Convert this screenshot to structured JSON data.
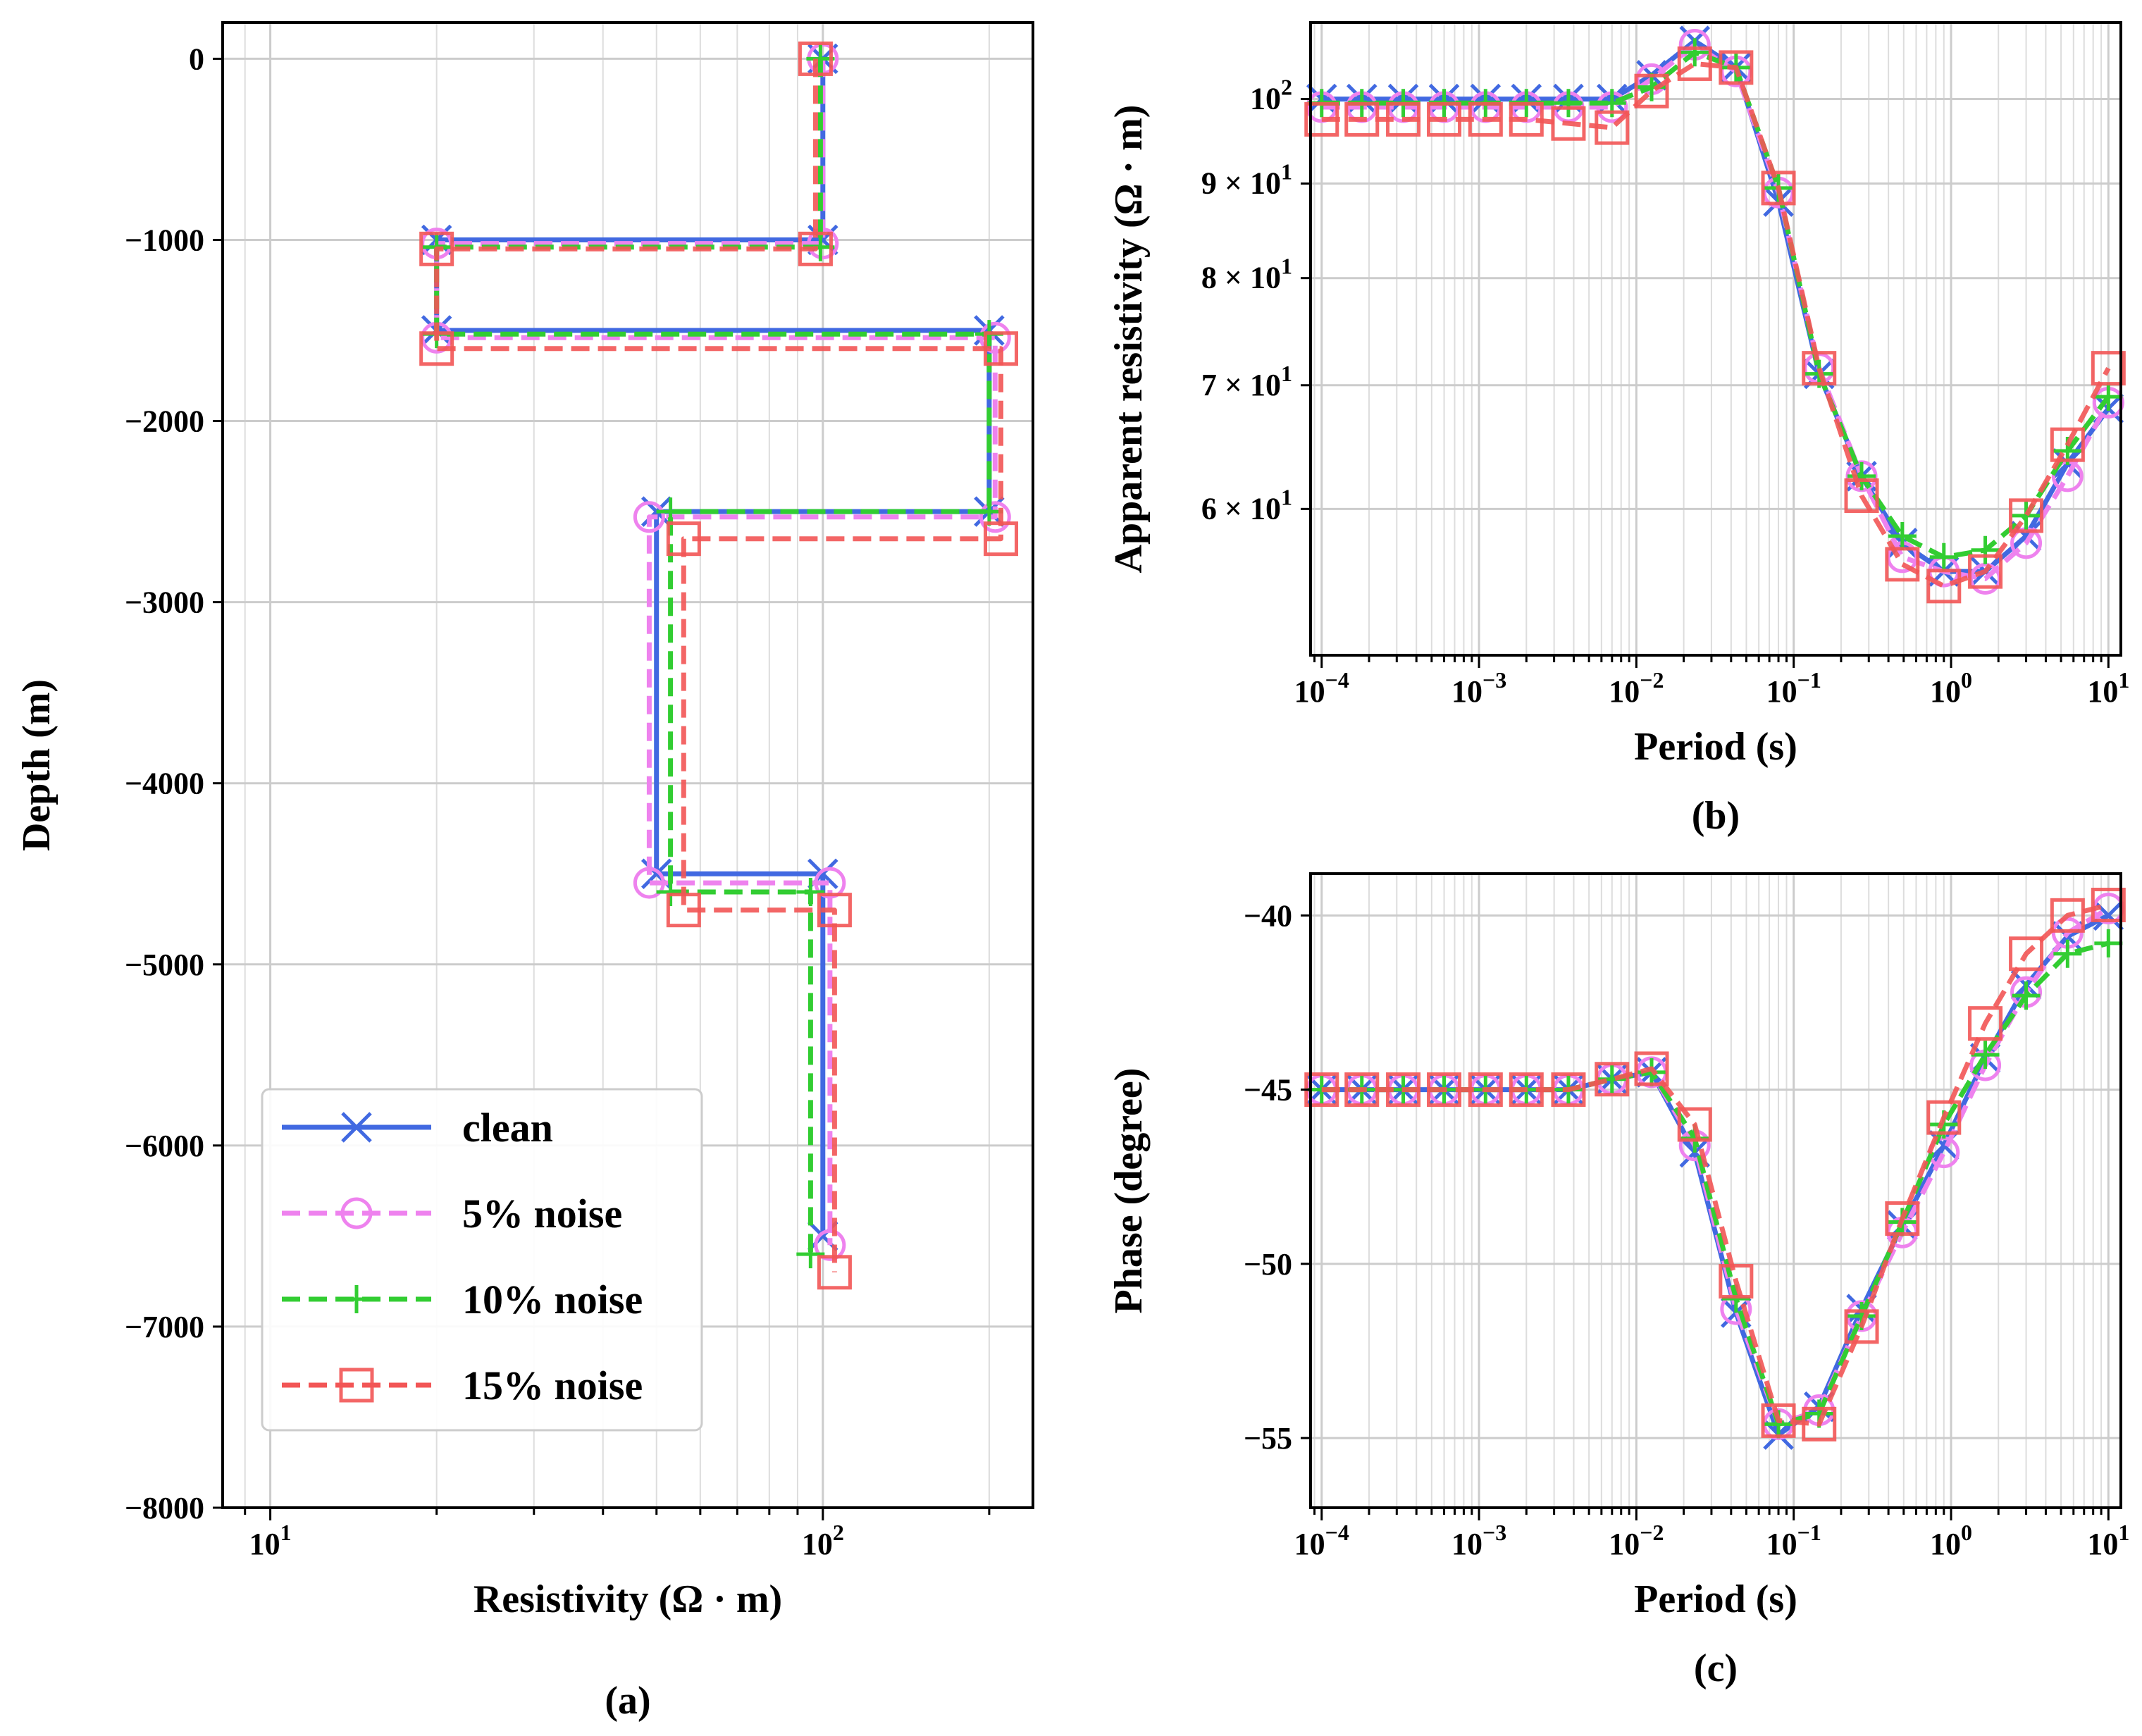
{
  "colors": {
    "clean": "#4169e1",
    "n5": "#ee82ee",
    "n10": "#32cd32",
    "n15": "#f25555"
  },
  "legend": {
    "items": [
      "clean",
      "5% noise",
      "10% noise",
      "15% noise"
    ]
  },
  "chart_data": [
    {
      "panel": "a",
      "type": "line",
      "caption": "(a)",
      "xlabel": "Resistivity (Ω · m)",
      "ylabel": "Depth (m)",
      "xscale": "log",
      "xlim": [
        8.2,
        240
      ],
      "ylim": [
        -8000,
        200
      ],
      "xticks": [
        {
          "v": 10,
          "base": "10",
          "exp": "1"
        },
        {
          "v": 100,
          "base": "10",
          "exp": "2"
        }
      ],
      "yticks": [
        0,
        -1000,
        -2000,
        -3000,
        -4000,
        -5000,
        -6000,
        -7000,
        -8000
      ],
      "yticklabels": [
        "0",
        "−1000",
        "−2000",
        "−3000",
        "−4000",
        "−5000",
        "−6000",
        "−7000",
        "−8000"
      ],
      "series": [
        {
          "name": "clean",
          "key": "clean",
          "marker": "x",
          "dash": false,
          "points": [
            [
              100,
              0
            ],
            [
              100,
              -1000
            ],
            [
              20,
              -1000
            ],
            [
              20,
              -1500
            ],
            [
              200,
              -1500
            ],
            [
              200,
              -2500
            ],
            [
              50,
              -2500
            ],
            [
              50,
              -4500
            ],
            [
              100,
              -4500
            ],
            [
              100,
              -6500
            ]
          ]
        },
        {
          "name": "5% noise",
          "key": "n5",
          "marker": "o",
          "dash": true,
          "points": [
            [
              100,
              0
            ],
            [
              100,
              -1020
            ],
            [
              20,
              -1020
            ],
            [
              20,
              -1540
            ],
            [
              205,
              -1540
            ],
            [
              205,
              -2530
            ],
            [
              48.5,
              -2530
            ],
            [
              48.5,
              -4550
            ],
            [
              103,
              -4550
            ],
            [
              103,
              -6550
            ]
          ]
        },
        {
          "name": "10% noise",
          "key": "n10",
          "marker": "+",
          "dash": true,
          "points": [
            [
              99,
              0
            ],
            [
              99,
              -1040
            ],
            [
              20,
              -1040
            ],
            [
              20,
              -1520
            ],
            [
              200,
              -1520
            ],
            [
              200,
              -2500
            ],
            [
              53,
              -2500
            ],
            [
              53,
              -4600
            ],
            [
              95,
              -4600
            ],
            [
              95,
              -6600
            ]
          ]
        },
        {
          "name": "15% noise",
          "key": "n15",
          "marker": "s",
          "dash": true,
          "points": [
            [
              97,
              0
            ],
            [
              97,
              -1050
            ],
            [
              20,
              -1050
            ],
            [
              20,
              -1600
            ],
            [
              210,
              -1600
            ],
            [
              210,
              -2650
            ],
            [
              56,
              -2650
            ],
            [
              56,
              -4700
            ],
            [
              105,
              -4700
            ],
            [
              105,
              -6700
            ]
          ]
        }
      ]
    },
    {
      "panel": "b",
      "type": "line",
      "caption": "(b)",
      "xlabel": "Period (s)",
      "ylabel": "Apparent resistivity (Ω · m)",
      "xscale": "log",
      "yscale": "log",
      "xlim": [
        8.5e-05,
        12
      ],
      "ylim": [
        50,
        110
      ],
      "xticks": [
        {
          "v": 0.0001,
          "base": "10",
          "exp": "−4"
        },
        {
          "v": 0.001,
          "base": "10",
          "exp": "−3"
        },
        {
          "v": 0.01,
          "base": "10",
          "exp": "−2"
        },
        {
          "v": 0.1,
          "base": "10",
          "exp": "−1"
        },
        {
          "v": 1,
          "base": "10",
          "exp": "0"
        },
        {
          "v": 10,
          "base": "10",
          "exp": "1"
        }
      ],
      "yticks": [
        {
          "v": 100,
          "text": "10",
          "exp": "2"
        },
        {
          "v": 90,
          "text": "9 × 10",
          "exp": "1"
        },
        {
          "v": 80,
          "text": "8 × 10",
          "exp": "1"
        },
        {
          "v": 70,
          "text": "7 × 10",
          "exp": "1"
        },
        {
          "v": 60,
          "text": "6 × 10",
          "exp": "1"
        }
      ],
      "x": [
        0.0001,
        0.00018,
        0.00033,
        0.0006,
        0.0011,
        0.002,
        0.0037,
        0.007,
        0.0125,
        0.0235,
        0.043,
        0.08,
        0.145,
        0.27,
        0.49,
        0.9,
        1.65,
        3.0,
        5.5,
        10
      ],
      "series": [
        {
          "name": "clean",
          "key": "clean",
          "marker": "x",
          "dash": false,
          "values": [
            100,
            100,
            100,
            100,
            100,
            100,
            100,
            100,
            103,
            107.5,
            104,
            88,
            71,
            62.5,
            57.5,
            55.5,
            55.5,
            58,
            63.5,
            68
          ]
        },
        {
          "name": "5% noise",
          "key": "n5",
          "marker": "o",
          "dash": true,
          "values": [
            99,
            99,
            99,
            99,
            99,
            99,
            99,
            99,
            102.5,
            107,
            103.5,
            89,
            71.5,
            62.5,
            56.5,
            55.5,
            55,
            57.5,
            62.5,
            68.5
          ]
        },
        {
          "name": "10% noise",
          "key": "n10",
          "marker": "+",
          "dash": true,
          "values": [
            99.5,
            99.5,
            99.5,
            99.5,
            99.5,
            99.5,
            99.5,
            99.5,
            101.5,
            106,
            104,
            89.5,
            71,
            62.5,
            58,
            56.5,
            57,
            59.5,
            64.5,
            69
          ]
        },
        {
          "name": "15% noise",
          "key": "n15",
          "marker": "s",
          "dash": true,
          "values": [
            97.5,
            97.5,
            97.5,
            97.5,
            97.5,
            97.5,
            97,
            96.5,
            101,
            104.5,
            104,
            89.5,
            71.5,
            61,
            56,
            54.5,
            55.5,
            59.5,
            65,
            71.5
          ]
        }
      ]
    },
    {
      "panel": "c",
      "type": "line",
      "caption": "(c)",
      "xlabel": "Period (s)",
      "ylabel": "Phase (degree)",
      "xscale": "log",
      "xlim": [
        8.5e-05,
        12
      ],
      "ylim": [
        -57,
        -38.8
      ],
      "xticks": [
        {
          "v": 0.0001,
          "base": "10",
          "exp": "−4"
        },
        {
          "v": 0.001,
          "base": "10",
          "exp": "−3"
        },
        {
          "v": 0.01,
          "base": "10",
          "exp": "−2"
        },
        {
          "v": 0.1,
          "base": "10",
          "exp": "−1"
        },
        {
          "v": 1,
          "base": "10",
          "exp": "0"
        },
        {
          "v": 10,
          "base": "10",
          "exp": "1"
        }
      ],
      "yticks": [
        -40,
        -45,
        -50,
        -55
      ],
      "yticklabels": [
        "−40",
        "−45",
        "−50",
        "−55"
      ],
      "x": [
        0.0001,
        0.00018,
        0.00033,
        0.0006,
        0.0011,
        0.002,
        0.0037,
        0.007,
        0.0125,
        0.0235,
        0.043,
        0.08,
        0.145,
        0.27,
        0.49,
        0.9,
        1.65,
        3.0,
        5.5,
        10
      ],
      "series": [
        {
          "name": "clean",
          "key": "clean",
          "marker": "x",
          "dash": false,
          "values": [
            -45,
            -45,
            -45,
            -45,
            -45,
            -45,
            -45,
            -44.7,
            -44.5,
            -46.8,
            -51.4,
            -54.9,
            -54.1,
            -51.3,
            -48.9,
            -46.6,
            -44.1,
            -42,
            -40.6,
            -40
          ]
        },
        {
          "name": "5% noise",
          "key": "n5",
          "marker": "o",
          "dash": true,
          "values": [
            -45,
            -45,
            -45,
            -45,
            -45,
            -45,
            -45,
            -44.7,
            -44.5,
            -46.6,
            -51.3,
            -54.6,
            -54.2,
            -51.5,
            -49.1,
            -46.8,
            -44.3,
            -42.2,
            -40.5,
            -39.8
          ]
        },
        {
          "name": "10% noise",
          "key": "n10",
          "marker": "+",
          "dash": true,
          "values": [
            -45,
            -45,
            -45,
            -45,
            -45,
            -45,
            -45,
            -44.7,
            -44.5,
            -46.4,
            -51,
            -54.6,
            -54.3,
            -51.5,
            -48.8,
            -46,
            -44,
            -42.3,
            -41.1,
            -40.8
          ]
        },
        {
          "name": "15% noise",
          "key": "n15",
          "marker": "s",
          "dash": true,
          "values": [
            -45,
            -45,
            -45,
            -45,
            -45,
            -45,
            -45,
            -44.7,
            -44.4,
            -46,
            -50.5,
            -54.5,
            -54.6,
            -51.8,
            -48.7,
            -45.8,
            -43.1,
            -41.1,
            -40,
            -39.7
          ]
        }
      ]
    }
  ]
}
